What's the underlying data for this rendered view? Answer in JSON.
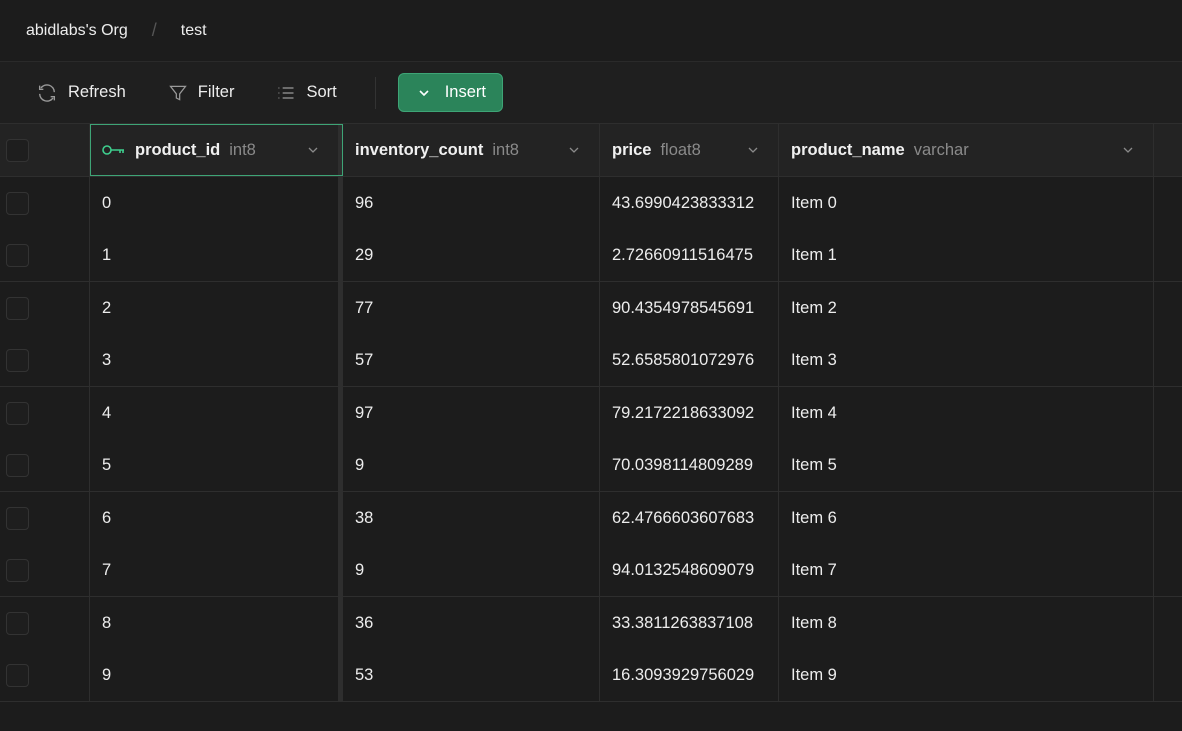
{
  "breadcrumb": {
    "org": "abidlabs's Org",
    "table": "test"
  },
  "toolbar": {
    "refresh": "Refresh",
    "filter": "Filter",
    "sort": "Sort",
    "insert": "Insert"
  },
  "accent": "#2b845a",
  "columns": [
    {
      "name": "product_id",
      "type": "int8",
      "primary_key": true
    },
    {
      "name": "inventory_count",
      "type": "int8"
    },
    {
      "name": "price",
      "type": "float8"
    },
    {
      "name": "product_name",
      "type": "varchar"
    }
  ],
  "rows": [
    [
      "0",
      "96",
      "43.6990423833312",
      "Item 0"
    ],
    [
      "1",
      "29",
      "2.72660911516475",
      "Item 1"
    ],
    [
      "2",
      "77",
      "90.4354978545691",
      "Item 2"
    ],
    [
      "3",
      "57",
      "52.6585801072976",
      "Item 3"
    ],
    [
      "4",
      "97",
      "79.2172218633092",
      "Item 4"
    ],
    [
      "5",
      "9",
      "70.0398114809289",
      "Item 5"
    ],
    [
      "6",
      "38",
      "62.4766603607683",
      "Item 6"
    ],
    [
      "7",
      "9",
      "94.0132548609079",
      "Item 7"
    ],
    [
      "8",
      "36",
      "33.3811263837108",
      "Item 8"
    ],
    [
      "9",
      "53",
      "16.3093929756029",
      "Item 9"
    ]
  ]
}
